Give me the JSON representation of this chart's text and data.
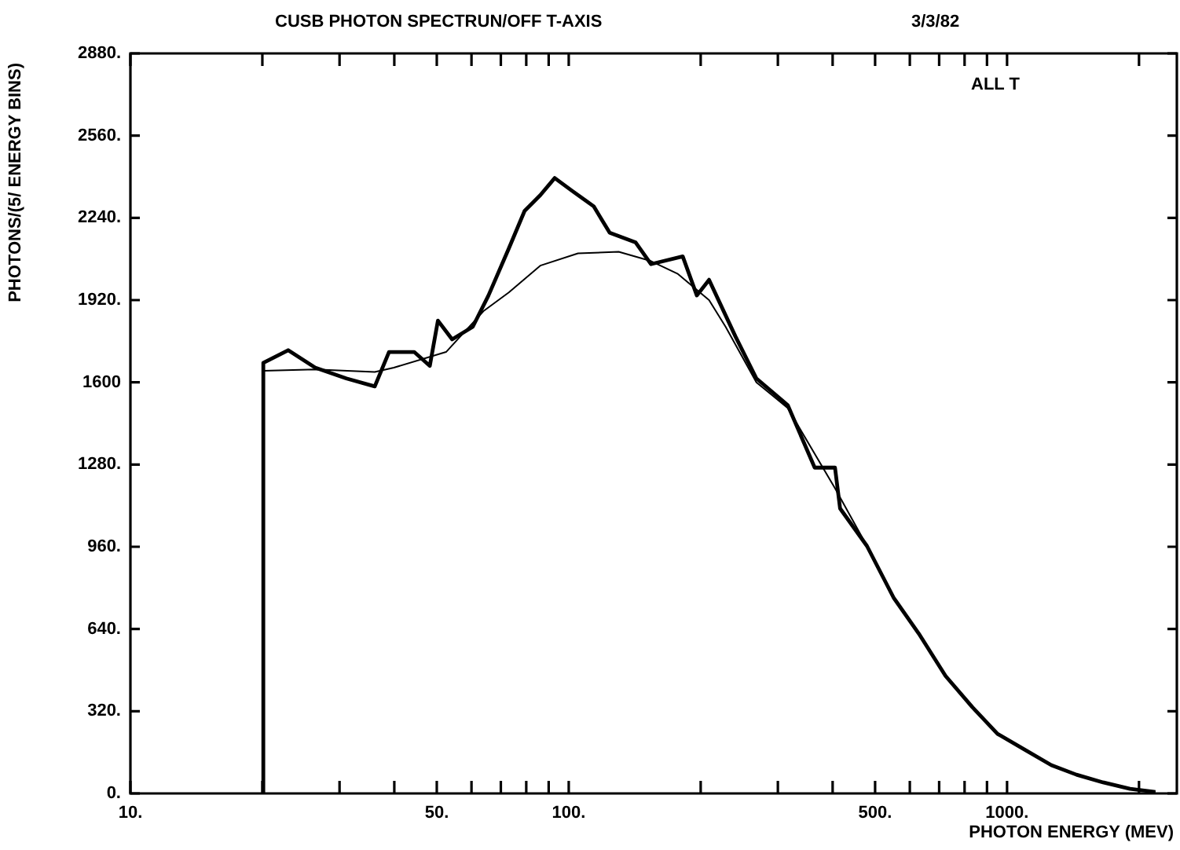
{
  "chart_data": {
    "type": "line",
    "title": "CUSB PHOTON SPECTRUN/OFF T-AXIS",
    "subtitle": "3/3/82",
    "xlabel": "PHOTON ENERGY (MEV)",
    "ylabel": "PHOTONS/(5/ ENERGY BINS)",
    "annotations": [
      "ALL T"
    ],
    "log": "x",
    "xlim": [
      10,
      2440
    ],
    "ylim": [
      0,
      2880
    ],
    "xticks": [
      {
        "value": 10,
        "label": "10."
      },
      {
        "value": 20,
        "label": null
      },
      {
        "value": 30,
        "label": null
      },
      {
        "value": 40,
        "label": null
      },
      {
        "value": 50,
        "label": "50."
      },
      {
        "value": 60,
        "label": null
      },
      {
        "value": 70,
        "label": null
      },
      {
        "value": 80,
        "label": null
      },
      {
        "value": 90,
        "label": null
      },
      {
        "value": 100,
        "label": "100."
      },
      {
        "value": 200,
        "label": null
      },
      {
        "value": 300,
        "label": null
      },
      {
        "value": 400,
        "label": null
      },
      {
        "value": 500,
        "label": "500."
      },
      {
        "value": 600,
        "label": null
      },
      {
        "value": 700,
        "label": null
      },
      {
        "value": 800,
        "label": null
      },
      {
        "value": 900,
        "label": null
      },
      {
        "value": 1000,
        "label": "1000."
      },
      {
        "value": 2000,
        "label": null
      }
    ],
    "yticks": [
      {
        "value": 0,
        "label": "0."
      },
      {
        "value": 320,
        "label": "320."
      },
      {
        "value": 640,
        "label": "640."
      },
      {
        "value": 960,
        "label": "960."
      },
      {
        "value": 1280,
        "label": "1280."
      },
      {
        "value": 1600,
        "label": "1600"
      },
      {
        "value": 1920,
        "label": "1920."
      },
      {
        "value": 2240,
        "label": "2240."
      },
      {
        "value": 2560,
        "label": "2560."
      },
      {
        "value": 2880,
        "label": "2880."
      }
    ],
    "grid": false,
    "legend": false,
    "marker": "none",
    "line_style": "solid",
    "series": [
      {
        "color": "#000000",
        "x": [
          20.1,
          20.1,
          22.9,
          26.4,
          31.1,
          36.1,
          38.9,
          44.4,
          48.2,
          50.3,
          54.2,
          60.4,
          65.6,
          73,
          79.3,
          86.1,
          92.9,
          101.6,
          114,
          124,
          142,
          154,
          182,
          196,
          209,
          240,
          268,
          316,
          364,
          405,
          416,
          479,
          551,
          629,
          724,
          834,
          951,
          1096,
          1262,
          1440,
          1656,
          1908,
          2180
        ],
        "values": [
          0,
          1676,
          1725,
          1657,
          1615,
          1584,
          1718,
          1718,
          1664,
          1840,
          1767,
          1816,
          1938,
          2121,
          2267,
          2328,
          2395,
          2346,
          2285,
          2182,
          2145,
          2060,
          2090,
          1938,
          1999,
          1779,
          1615,
          1511,
          1268,
          1268,
          1109,
          963,
          762,
          622,
          457,
          335,
          232,
          171,
          110,
          73,
          43,
          18,
          6
        ]
      },
      {
        "color": "#000000",
        "x": [
          20.1,
          26.4,
          36.1,
          39.9,
          52.5,
          63.9,
          73,
          86.1,
          105,
          130,
          154,
          177,
          209,
          228,
          268,
          316,
          405,
          479,
          551,
          629,
          724,
          834,
          951,
          1096,
          1262,
          1440,
          1656,
          1908,
          2180
        ],
        "values": [
          1645,
          1650,
          1640,
          1657,
          1718,
          1877,
          1950,
          2054,
          2102,
          2108,
          2072,
          2023,
          1920,
          1816,
          1600,
          1500,
          1188,
          963,
          762,
          622,
          457,
          335,
          232,
          171,
          110,
          73,
          43,
          18,
          6
        ]
      }
    ]
  }
}
